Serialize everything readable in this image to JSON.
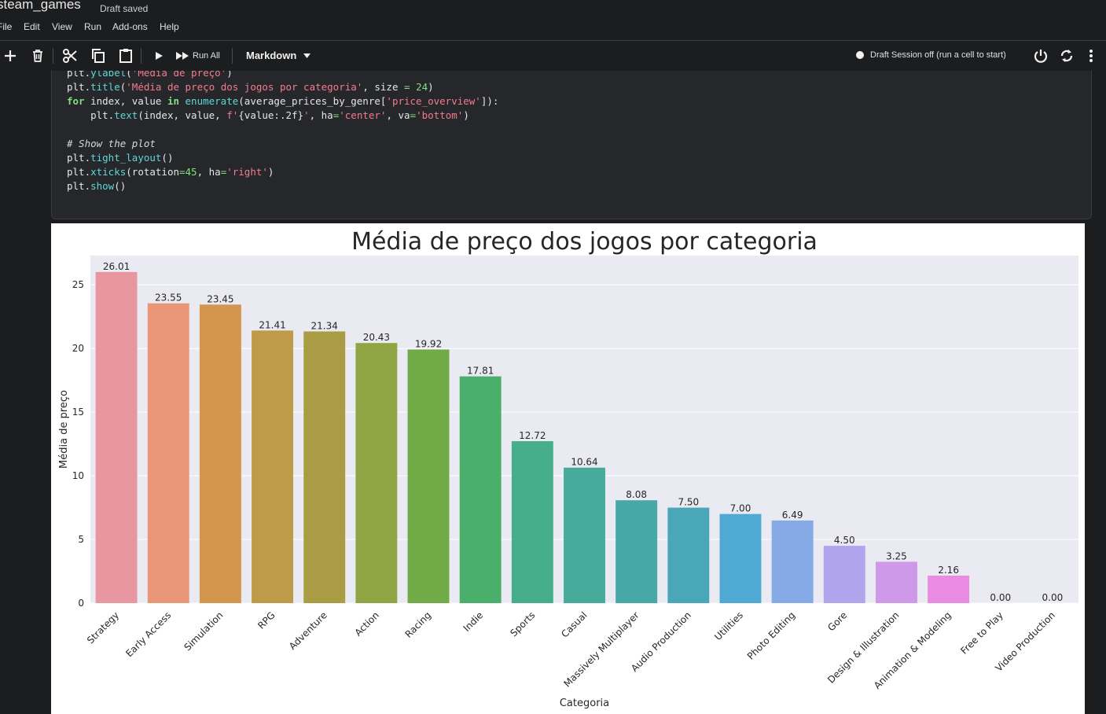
{
  "notebook": {
    "title": "steam_games",
    "status": "Draft saved",
    "menu": [
      "File",
      "Edit",
      "View",
      "Run",
      "Add-ons",
      "Help"
    ]
  },
  "toolbar": {
    "run_all_label": "Run All",
    "cell_type": "Markdown",
    "session_status": "Draft Session off (run a cell to start)",
    "icons": [
      "add-icon",
      "trash-icon",
      "scissors-icon",
      "copy-icon",
      "paste-icon",
      "play-icon",
      "fast-forward-icon",
      "chevron-down-icon",
      "power-icon",
      "refresh-icon",
      "more-vertical-icon"
    ]
  },
  "code_cell": {
    "lines": [
      [
        [
          "plt.",
          ""
        ],
        [
          "ylabel",
          "fn"
        ],
        [
          "(",
          ""
        ],
        [
          "'Média de preço'",
          "str"
        ],
        [
          ")",
          ""
        ]
      ],
      [
        [
          "plt.",
          ""
        ],
        [
          "title",
          "fn"
        ],
        [
          "(",
          ""
        ],
        [
          "'Média de preço dos jogos por categoria'",
          "str"
        ],
        [
          ", size ",
          ""
        ],
        [
          "=",
          "num"
        ],
        [
          " ",
          ""
        ],
        [
          "24",
          "num"
        ],
        [
          ")",
          ""
        ]
      ],
      [
        [
          "for",
          "kw"
        ],
        [
          " index, value ",
          ""
        ],
        [
          "in",
          "kw"
        ],
        [
          " ",
          ""
        ],
        [
          "enumerate",
          "fn"
        ],
        [
          "(average_prices_by_genre[",
          ""
        ],
        [
          "'price_overview'",
          "str"
        ],
        [
          "]):",
          ""
        ]
      ],
      [
        [
          "    plt.",
          ""
        ],
        [
          "text",
          "fn"
        ],
        [
          "(index, value, ",
          ""
        ],
        [
          "f'",
          "str"
        ],
        [
          "{value:.2f}",
          ""
        ],
        [
          "'",
          "str"
        ],
        [
          ", ha",
          ""
        ],
        [
          "=",
          "num"
        ],
        [
          "'center'",
          "str"
        ],
        [
          ", va",
          ""
        ],
        [
          "=",
          "num"
        ],
        [
          "'bottom'",
          "str"
        ],
        [
          ")",
          ""
        ]
      ],
      [
        [
          "",
          ""
        ]
      ],
      [
        [
          "# Show the plot",
          "cm"
        ]
      ],
      [
        [
          "plt.",
          ""
        ],
        [
          "tight_layout",
          "fn"
        ],
        [
          "()",
          ""
        ]
      ],
      [
        [
          "plt.",
          ""
        ],
        [
          "xticks",
          "fn"
        ],
        [
          "(rotation",
          ""
        ],
        [
          "=",
          "num"
        ],
        [
          "45",
          "num"
        ],
        [
          ", ha",
          ""
        ],
        [
          "=",
          "num"
        ],
        [
          "'right'",
          "str"
        ],
        [
          ")",
          ""
        ]
      ],
      [
        [
          "plt.",
          ""
        ],
        [
          "show",
          "fn"
        ],
        [
          "()",
          ""
        ]
      ]
    ]
  },
  "chart_data": {
    "type": "bar",
    "title": "Média de preço dos jogos por categoria",
    "xlabel": "Categoria",
    "ylabel": "Média de preço",
    "ylim": [
      0,
      27.3
    ],
    "yticks": [
      0,
      5,
      10,
      15,
      20,
      25
    ],
    "grid": true,
    "categories": [
      "Strategy",
      "Early Access",
      "Simulation",
      "RPG",
      "Adventure",
      "Action",
      "Racing",
      "Indie",
      "Sports",
      "Casual",
      "Massively Multiplayer",
      "Audio Production",
      "Utilities",
      "Photo Editing",
      "Gore",
      "Design & Illustration",
      "Animation & Modeling",
      "Free to Play",
      "Video Production"
    ],
    "values": [
      26.01,
      23.55,
      23.45,
      21.41,
      21.34,
      20.43,
      19.92,
      17.81,
      12.72,
      10.64,
      8.08,
      7.5,
      7.0,
      6.49,
      4.5,
      3.25,
      2.16,
      0.0,
      0.0
    ],
    "value_labels": [
      "26.01",
      "23.55",
      "23.45",
      "21.41",
      "21.34",
      "20.43",
      "19.92",
      "17.81",
      "12.72",
      "10.64",
      "8.08",
      "7.50",
      "7.00",
      "6.49",
      "4.50",
      "3.25",
      "2.16",
      "0.00",
      "0.00"
    ],
    "colors": [
      "#e8969f",
      "#e89677",
      "#d4964c",
      "#bf9a48",
      "#a99c45",
      "#8fa544",
      "#70ab48",
      "#4aaf6a",
      "#47ae8b",
      "#47ab9c",
      "#48a8a8",
      "#4aa7b8",
      "#50a9d2",
      "#86aae6",
      "#b0a5ec",
      "#cf99ea",
      "#e98be0",
      "#e88fc0",
      "#e892ad"
    ]
  }
}
